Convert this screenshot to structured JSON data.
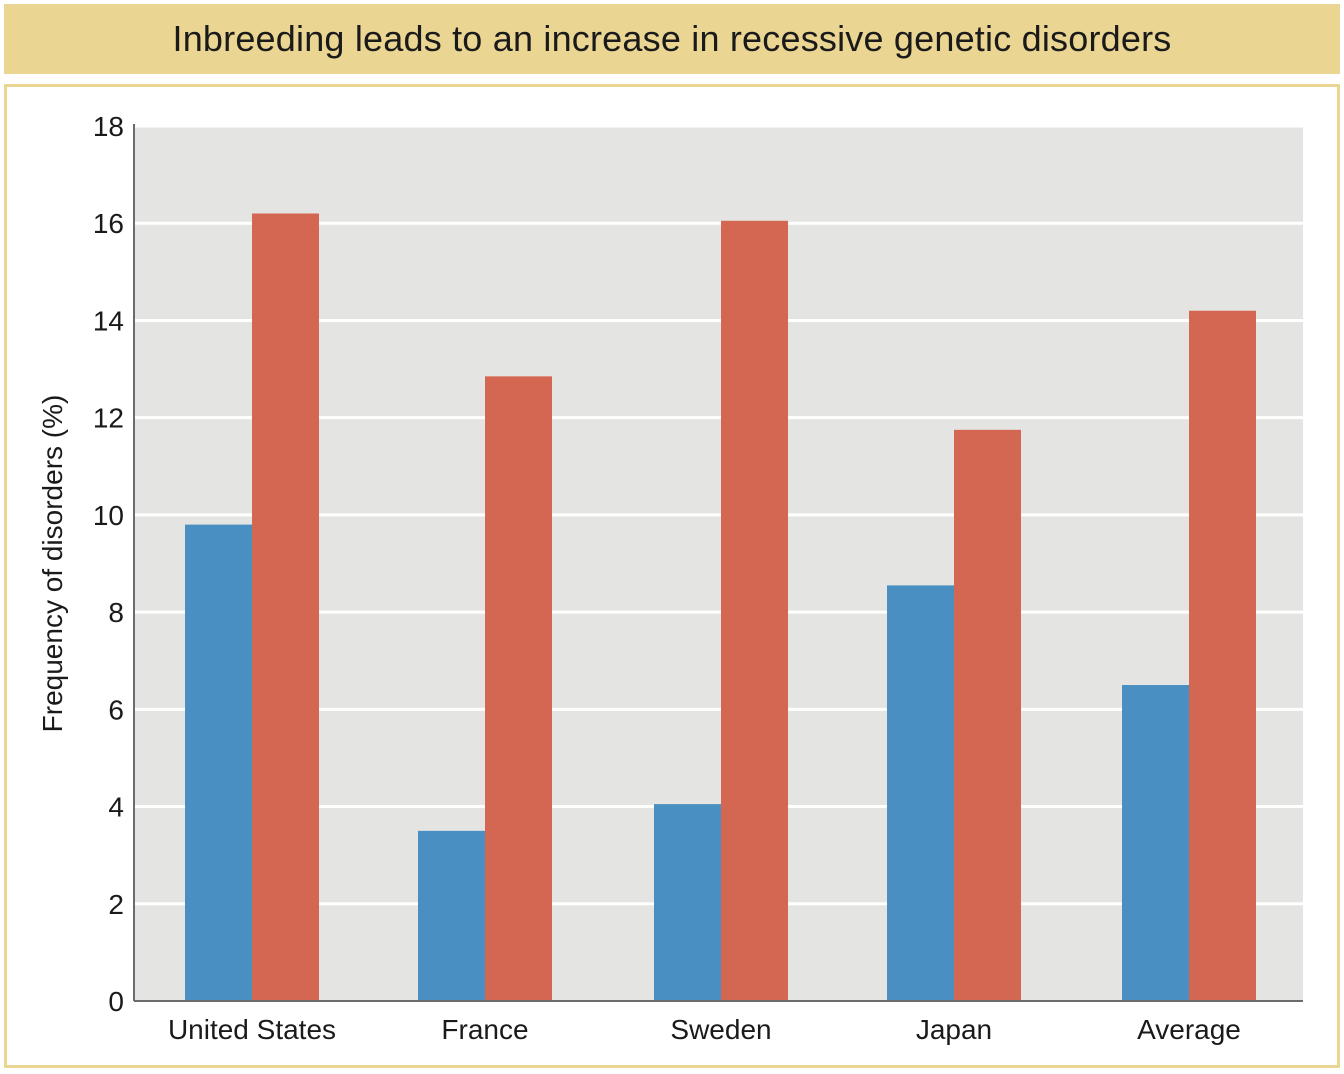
{
  "title": "Inbreeding leads to an increase in recessive genetic disorders",
  "chart_data": {
    "type": "bar",
    "title": "Inbreeding leads to an increase in recessive genetic disorders",
    "xlabel": "",
    "ylabel": "Frequency of disorders (%)",
    "ylim": [
      0,
      18
    ],
    "yticks": [
      "0",
      "2",
      "4",
      "6",
      "8",
      "10",
      "12",
      "14",
      "16",
      "18"
    ],
    "categories": [
      "United States",
      "France",
      "Sweden",
      "Japan",
      "Average"
    ],
    "series": [
      {
        "color": "#4a8fc1",
        "values": [
          9.8,
          3.5,
          4.05,
          8.55,
          6.5
        ]
      },
      {
        "color": "#d46752",
        "values": [
          16.2,
          12.85,
          16.05,
          11.75,
          14.2
        ]
      }
    ],
    "grid": true,
    "legend": "none",
    "colors": {
      "plot_background": "#e4e4e3",
      "gridline": "#ffffff",
      "axis": "#6b6b6b",
      "banner": "#ead592"
    }
  }
}
